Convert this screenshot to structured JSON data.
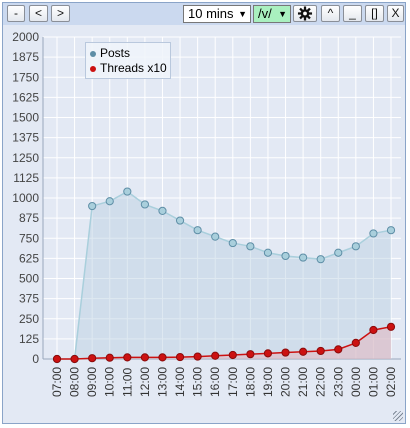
{
  "toolbar": {
    "minus_label": "-",
    "prev_label": "<",
    "next_label": ">",
    "interval_value": "10 mins",
    "board_value": "/v/",
    "settings_icon": "gear-icon",
    "collapse_label": "^",
    "minimize_label": "_",
    "maximize_label": "[]",
    "close_label": "X",
    "select_arrow": "▼"
  },
  "colors": {
    "posts": "#5e8ea6",
    "posts_light": "#a9cfdc",
    "threads": "#cc1111",
    "threads_dark": "#8a0b0b",
    "grid": "#ffffff",
    "background": "#e3e9f4"
  },
  "chart_data": {
    "type": "line",
    "title": "",
    "xlabel": "",
    "ylabel": "",
    "ylim": [
      0,
      2000
    ],
    "yticks": [
      "0",
      "125",
      "250",
      "375",
      "500",
      "625",
      "750",
      "875",
      "1000",
      "1125",
      "1250",
      "1375",
      "1500",
      "1625",
      "1750",
      "1875",
      "2000"
    ],
    "categories": [
      "07:00",
      "08:00",
      "09:00",
      "10:00",
      "11:00",
      "12:00",
      "13:00",
      "14:00",
      "15:00",
      "16:00",
      "17:00",
      "18:00",
      "19:00",
      "20:00",
      "21:00",
      "22:00",
      "23:00",
      "00:00",
      "01:00",
      "02:00"
    ],
    "grid": true,
    "legend_position": "top-left",
    "series": [
      {
        "name": "Posts",
        "values": [
          0,
          0,
          950,
          980,
          1040,
          960,
          920,
          860,
          800,
          760,
          720,
          700,
          660,
          640,
          630,
          620,
          660,
          700,
          780,
          800
        ]
      },
      {
        "name": "Threads x10",
        "values": [
          0,
          0,
          5,
          8,
          10,
          10,
          10,
          12,
          15,
          20,
          25,
          30,
          35,
          40,
          45,
          50,
          60,
          100,
          180,
          200
        ]
      }
    ]
  }
}
